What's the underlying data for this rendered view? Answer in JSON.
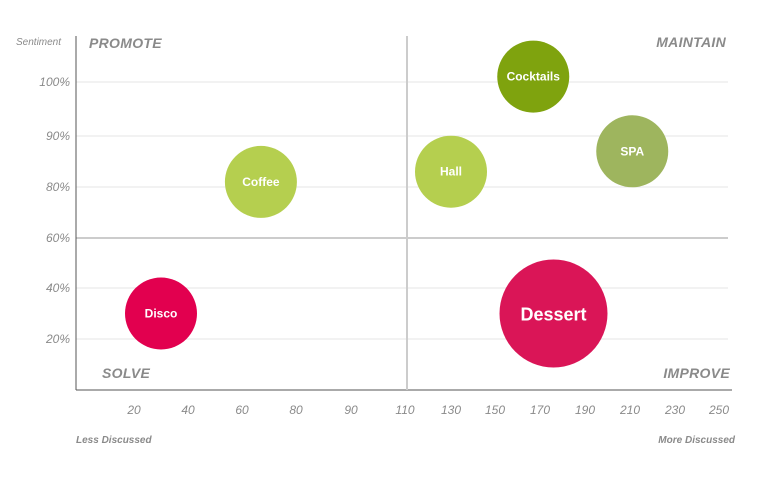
{
  "chart_data": {
    "type": "scatter",
    "ylabel": "Sentiment",
    "x_start_label": "Less Discussed",
    "x_end_label": "More Discussed",
    "x_ticks": [
      "20",
      "40",
      "60",
      "80",
      "90",
      "110",
      "130",
      "150",
      "170",
      "190",
      "210",
      "230",
      "250"
    ],
    "y_ticks": [
      "100%",
      "90%",
      "80%",
      "60%",
      "40%",
      "20%"
    ],
    "quadrants": {
      "top_left": "PROMOTE",
      "top_right": "MAINTAIN",
      "bottom_left": "SOLVE",
      "bottom_right": "IMPROVE"
    },
    "grid": true,
    "points": [
      {
        "name": "Disco",
        "x": 30,
        "y": 30,
        "size": 36,
        "color": "#e2004f"
      },
      {
        "name": "Coffee",
        "x": 67,
        "y": 81,
        "size": 36,
        "color": "#b5cf4f"
      },
      {
        "name": "Hall",
        "x": 130,
        "y": 83,
        "size": 36,
        "color": "#b5cf4f"
      },
      {
        "name": "Cocktails",
        "x": 167,
        "y": 101,
        "size": 36,
        "color": "#7fa30e"
      },
      {
        "name": "SPA",
        "x": 211,
        "y": 87,
        "size": 36,
        "color": "#9eb55e"
      },
      {
        "name": "Dessert",
        "x": 176,
        "y": 30,
        "size": 54,
        "color": "#da1557"
      }
    ]
  }
}
